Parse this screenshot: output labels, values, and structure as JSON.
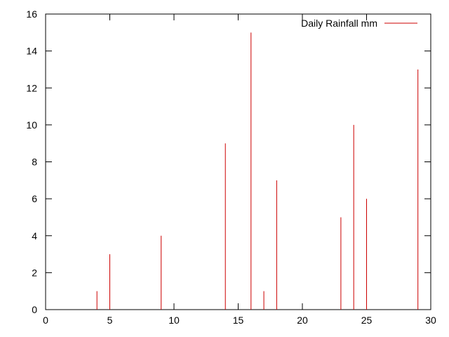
{
  "chart_data": {
    "type": "bar",
    "style": "impulses",
    "series": [
      {
        "name": "Daily Rainfall mm",
        "color": "#cc0000",
        "x": [
          4,
          5,
          9,
          14,
          16,
          17,
          18,
          23,
          24,
          25,
          29
        ],
        "values": [
          1,
          3,
          4,
          9,
          15,
          1,
          7,
          5,
          10,
          6,
          13
        ]
      }
    ],
    "xlim": [
      0,
      30
    ],
    "ylim": [
      0,
      16
    ],
    "xticks": [
      "0",
      "5",
      "10",
      "15",
      "20",
      "25",
      "30"
    ],
    "yticks": [
      "0",
      "2",
      "4",
      "6",
      "8",
      "10",
      "12",
      "14",
      "16"
    ],
    "grid": false,
    "legend": "top-right"
  }
}
